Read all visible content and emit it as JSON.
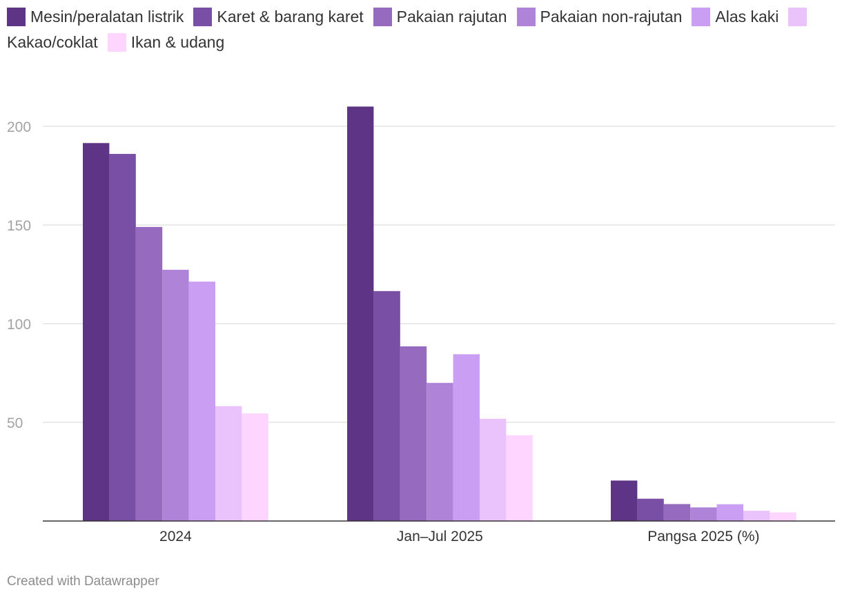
{
  "chart_data": {
    "type": "bar",
    "categories": [
      "2024",
      "Jan–Jul 2025",
      "Pangsa 2025 (%)"
    ],
    "series": [
      {
        "name": "Mesin/peralatan listrik",
        "color": "#5e3486",
        "values": [
          191.5,
          210,
          20.5
        ]
      },
      {
        "name": "Karet & barang karet",
        "color": "#794ea5",
        "values": [
          186,
          116.5,
          11.3
        ]
      },
      {
        "name": "Pakaian rajutan",
        "color": "#966abf",
        "values": [
          149,
          88.5,
          8.6
        ]
      },
      {
        "name": "Pakaian non-rajutan",
        "color": "#ae83d8",
        "values": [
          127.3,
          70,
          6.9
        ]
      },
      {
        "name": "Alas kaki",
        "color": "#ca9ef3",
        "values": [
          121.3,
          84.5,
          8.5
        ]
      },
      {
        "name": "Kakao/coklat",
        "color": "#eac3fc",
        "values": [
          58.2,
          51.8,
          5.2
        ]
      },
      {
        "name": "Ikan & udang",
        "color": "#fdd5fe",
        "values": [
          54.5,
          43.4,
          4.3
        ]
      }
    ],
    "yticks": [
      50,
      100,
      150,
      200
    ],
    "ylim": [
      0,
      220
    ],
    "grid": true,
    "legend": "top-left",
    "xlabel": "",
    "ylabel": ""
  },
  "footer": "Created with Datawrapper"
}
